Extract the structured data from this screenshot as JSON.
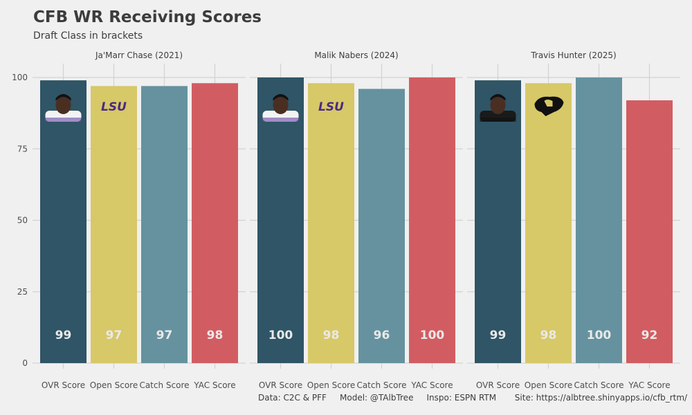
{
  "header": {
    "title": "CFB WR Receiving Scores",
    "subtitle": "Draft Class in brackets"
  },
  "caption": "Data: C2C & PFF     Model: @TAlbTree     Inspo: ESPN RTM       Site: https://albtree.shinyapps.io/cfb_rtm/",
  "colors": {
    "background": "#f0f0f0",
    "grid": "#d2d2d2",
    "OVR Score": "#2f5566",
    "Open Score": "#d7c868",
    "Catch Score": "#65929e",
    "YAC Score": "#d15d62"
  },
  "chart_data": {
    "type": "bar",
    "facets": [
      "Ja'Marr Chase (2021)",
      "Malik Nabers (2024)",
      "Travis Hunter (2025)"
    ],
    "categories": [
      "OVR Score",
      "Open Score",
      "Catch Score",
      "YAC Score"
    ],
    "values": [
      [
        99,
        97,
        97,
        98
      ],
      [
        100,
        98,
        96,
        100
      ],
      [
        99,
        98,
        100,
        92
      ]
    ],
    "value_labels": [
      [
        "99",
        "97",
        "97",
        "98"
      ],
      [
        "100",
        "98",
        "96",
        "100"
      ],
      [
        "99",
        "98",
        "100",
        "92"
      ]
    ],
    "logos": [
      "LSU",
      "LSU",
      "colorado-buffalo"
    ],
    "yticks": [
      "0",
      "25",
      "50",
      "75",
      "100"
    ],
    "ylim": [
      0,
      100
    ],
    "grid": true
  }
}
